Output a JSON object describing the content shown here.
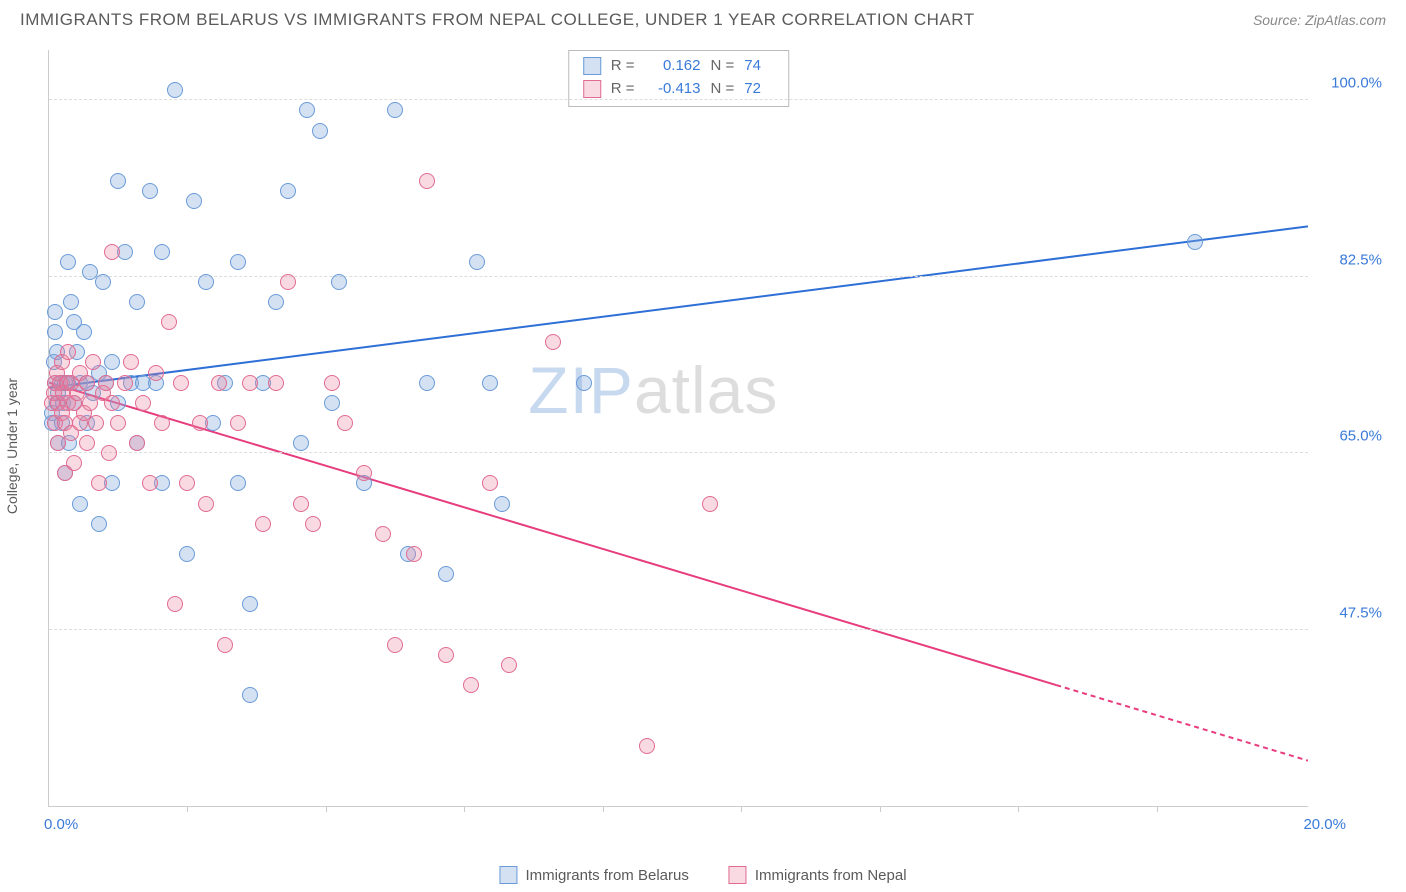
{
  "header": {
    "title": "IMMIGRANTS FROM BELARUS VS IMMIGRANTS FROM NEPAL COLLEGE, UNDER 1 YEAR CORRELATION CHART",
    "source": "Source: ZipAtlas.com"
  },
  "ylabel": "College, Under 1 year",
  "watermark": {
    "part1": "ZIP",
    "part2": "atlas"
  },
  "chart": {
    "type": "scatter-with-trendlines",
    "xlim": [
      0,
      20
    ],
    "ylim": [
      30,
      105
    ],
    "xticks": [
      {
        "v": 0,
        "label": "0.0%"
      },
      {
        "v": 20,
        "label": "20.0%"
      }
    ],
    "xtick_minor": [
      2.2,
      4.4,
      6.6,
      8.8,
      11.0,
      13.2,
      15.4,
      17.6
    ],
    "yticks": [
      {
        "v": 47.5,
        "label": "47.5%"
      },
      {
        "v": 65.0,
        "label": "65.0%"
      },
      {
        "v": 82.5,
        "label": "82.5%"
      },
      {
        "v": 100.0,
        "label": "100.0%"
      }
    ],
    "point_radius": 8,
    "point_border_width": 1,
    "background_color": "#ffffff",
    "grid_color": "#dddddd",
    "series": [
      {
        "name": "Immigrants from Belarus",
        "fill": "rgba(130,170,220,0.35)",
        "stroke": "#6a9bd8",
        "trend_color": "#2e6fd6",
        "trend_width": 2,
        "R": "0.162",
        "N": "74",
        "trend": {
          "x1": 0,
          "y1": 71.5,
          "x2": 20,
          "y2": 87.5
        },
        "points": [
          [
            0.05,
            69
          ],
          [
            0.05,
            68
          ],
          [
            0.08,
            74
          ],
          [
            0.1,
            72
          ],
          [
            0.1,
            77
          ],
          [
            0.1,
            79
          ],
          [
            0.12,
            75
          ],
          [
            0.12,
            70
          ],
          [
            0.15,
            66
          ],
          [
            0.15,
            71
          ],
          [
            0.2,
            72
          ],
          [
            0.2,
            68
          ],
          [
            0.22,
            70
          ],
          [
            0.25,
            72
          ],
          [
            0.25,
            63
          ],
          [
            0.3,
            84
          ],
          [
            0.3,
            72
          ],
          [
            0.32,
            66
          ],
          [
            0.35,
            80
          ],
          [
            0.4,
            78
          ],
          [
            0.4,
            70
          ],
          [
            0.45,
            75
          ],
          [
            0.5,
            72
          ],
          [
            0.5,
            60
          ],
          [
            0.55,
            77
          ],
          [
            0.6,
            72
          ],
          [
            0.6,
            68
          ],
          [
            0.65,
            83
          ],
          [
            0.7,
            71
          ],
          [
            0.8,
            73
          ],
          [
            0.8,
            58
          ],
          [
            0.85,
            82
          ],
          [
            0.9,
            72
          ],
          [
            1.0,
            62
          ],
          [
            1.0,
            74
          ],
          [
            1.1,
            92
          ],
          [
            1.1,
            70
          ],
          [
            1.2,
            85
          ],
          [
            1.3,
            72
          ],
          [
            1.4,
            66
          ],
          [
            1.4,
            80
          ],
          [
            1.5,
            72
          ],
          [
            1.6,
            91
          ],
          [
            1.7,
            72
          ],
          [
            1.8,
            85
          ],
          [
            1.8,
            62
          ],
          [
            2.0,
            101
          ],
          [
            2.2,
            55
          ],
          [
            2.3,
            90
          ],
          [
            2.5,
            82
          ],
          [
            2.6,
            68
          ],
          [
            2.8,
            72
          ],
          [
            3.0,
            62
          ],
          [
            3.0,
            84
          ],
          [
            3.2,
            50
          ],
          [
            3.2,
            41
          ],
          [
            3.4,
            72
          ],
          [
            3.6,
            80
          ],
          [
            3.8,
            91
          ],
          [
            4.0,
            66
          ],
          [
            4.1,
            99
          ],
          [
            4.3,
            97
          ],
          [
            4.5,
            70
          ],
          [
            4.6,
            82
          ],
          [
            5.0,
            62
          ],
          [
            5.5,
            99
          ],
          [
            5.7,
            55
          ],
          [
            6.0,
            72
          ],
          [
            6.3,
            53
          ],
          [
            6.8,
            84
          ],
          [
            7.0,
            72
          ],
          [
            7.2,
            60
          ],
          [
            8.5,
            72
          ],
          [
            18.2,
            86
          ]
        ]
      },
      {
        "name": "Immigrants from Nepal",
        "fill": "rgba(235,130,160,0.30)",
        "stroke": "#e06c92",
        "trend_color": "#e73c7e",
        "trend_width": 2,
        "R": "-0.413",
        "N": "72",
        "trend_solid": {
          "x1": 0,
          "y1": 72,
          "x2": 16.0,
          "y2": 42
        },
        "trend_dashed": {
          "x1": 16.0,
          "y1": 42,
          "x2": 20,
          "y2": 34.5
        },
        "points": [
          [
            0.05,
            70
          ],
          [
            0.08,
            71
          ],
          [
            0.1,
            72
          ],
          [
            0.1,
            68
          ],
          [
            0.12,
            73
          ],
          [
            0.15,
            70
          ],
          [
            0.15,
            66
          ],
          [
            0.18,
            72
          ],
          [
            0.2,
            69
          ],
          [
            0.2,
            74
          ],
          [
            0.22,
            71
          ],
          [
            0.25,
            68
          ],
          [
            0.25,
            63
          ],
          [
            0.28,
            72
          ],
          [
            0.3,
            70
          ],
          [
            0.3,
            75
          ],
          [
            0.35,
            67
          ],
          [
            0.35,
            72
          ],
          [
            0.4,
            70
          ],
          [
            0.4,
            64
          ],
          [
            0.45,
            71
          ],
          [
            0.5,
            68
          ],
          [
            0.5,
            73
          ],
          [
            0.55,
            69
          ],
          [
            0.6,
            66
          ],
          [
            0.6,
            72
          ],
          [
            0.65,
            70
          ],
          [
            0.7,
            74
          ],
          [
            0.75,
            68
          ],
          [
            0.8,
            62
          ],
          [
            0.85,
            71
          ],
          [
            0.9,
            72
          ],
          [
            0.95,
            65
          ],
          [
            1.0,
            70
          ],
          [
            1.0,
            85
          ],
          [
            1.1,
            68
          ],
          [
            1.2,
            72
          ],
          [
            1.3,
            74
          ],
          [
            1.4,
            66
          ],
          [
            1.5,
            70
          ],
          [
            1.6,
            62
          ],
          [
            1.7,
            73
          ],
          [
            1.8,
            68
          ],
          [
            1.9,
            78
          ],
          [
            2.0,
            50
          ],
          [
            2.1,
            72
          ],
          [
            2.2,
            62
          ],
          [
            2.4,
            68
          ],
          [
            2.5,
            60
          ],
          [
            2.7,
            72
          ],
          [
            2.8,
            46
          ],
          [
            3.0,
            68
          ],
          [
            3.2,
            72
          ],
          [
            3.4,
            58
          ],
          [
            3.6,
            72
          ],
          [
            3.8,
            82
          ],
          [
            4.0,
            60
          ],
          [
            4.2,
            58
          ],
          [
            4.5,
            72
          ],
          [
            4.7,
            68
          ],
          [
            5.0,
            63
          ],
          [
            5.3,
            57
          ],
          [
            5.5,
            46
          ],
          [
            5.8,
            55
          ],
          [
            6.0,
            92
          ],
          [
            6.3,
            45
          ],
          [
            6.7,
            42
          ],
          [
            7.0,
            62
          ],
          [
            7.3,
            44
          ],
          [
            8.0,
            76
          ],
          [
            9.5,
            36
          ],
          [
            10.5,
            60
          ]
        ]
      }
    ]
  },
  "bottom_legend": [
    {
      "label": "Immigrants from Belarus",
      "fill": "rgba(130,170,220,0.35)",
      "stroke": "#6a9bd8"
    },
    {
      "label": "Immigrants from Nepal",
      "fill": "rgba(235,130,160,0.30)",
      "stroke": "#e06c92"
    }
  ]
}
